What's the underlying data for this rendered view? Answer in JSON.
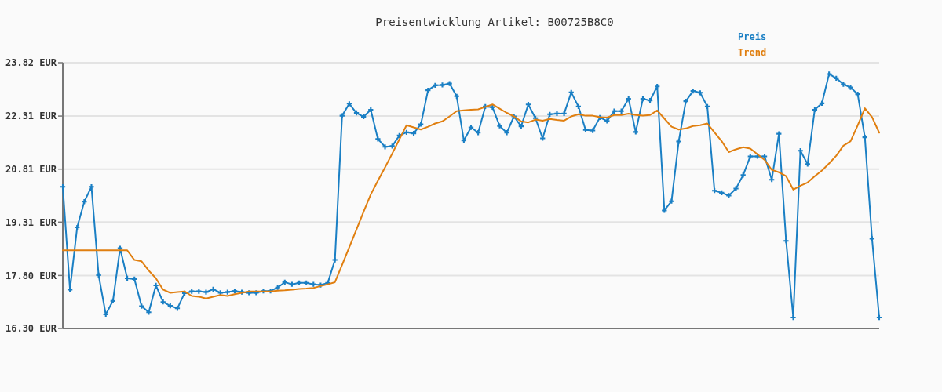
{
  "chart_data": {
    "type": "line",
    "title": "Preisentwicklung Artikel: B00725B8C0",
    "tick_labels": "y",
    "ylim": [
      16.3,
      23.82
    ],
    "categories": [
      null,
      null,
      null,
      null,
      null,
      null,
      null,
      null,
      null,
      null,
      null,
      null,
      null,
      null,
      null,
      null,
      null,
      null,
      null,
      null,
      null,
      null,
      null,
      null,
      null,
      null,
      null,
      null,
      null,
      null,
      null,
      null,
      null,
      null,
      null,
      null,
      null,
      null,
      null,
      null,
      null,
      null,
      null,
      null,
      null,
      null,
      null,
      null,
      null,
      null,
      null,
      null,
      null,
      null,
      null,
      null,
      null,
      null,
      null,
      null,
      null,
      null,
      null,
      null,
      null,
      null,
      null,
      null,
      null,
      null,
      null,
      null,
      null,
      null,
      null,
      null,
      null,
      null,
      null,
      null,
      null,
      null,
      null,
      null,
      null,
      null,
      null,
      null,
      null,
      null,
      null,
      null,
      null,
      null,
      null,
      null,
      null,
      null,
      null,
      null,
      null,
      null,
      null,
      null,
      null,
      null,
      null,
      null,
      null,
      null,
      null,
      null,
      null,
      null,
      null
    ],
    "yticks": [
      {
        "value": 16.3,
        "label": "16.30 EUR"
      },
      {
        "value": 17.8,
        "label": "17.80 EUR"
      },
      {
        "value": 19.31,
        "label": "19.31 EUR"
      },
      {
        "value": 20.81,
        "label": "20.81 EUR"
      },
      {
        "value": 22.31,
        "label": "22.31 EUR"
      },
      {
        "value": 23.82,
        "label": "23.82 EUR"
      }
    ],
    "grid": "y",
    "line_style": "solid",
    "series": [
      {
        "name": "Preis",
        "color": "#1a7fc4",
        "marker": "cross",
        "values": [
          20.31,
          17.4,
          19.16,
          19.89,
          20.31,
          17.81,
          16.7,
          17.08,
          18.57,
          17.72,
          17.7,
          16.93,
          16.76,
          17.52,
          17.05,
          16.94,
          16.87,
          17.3,
          17.35,
          17.35,
          17.33,
          17.41,
          17.31,
          17.33,
          17.36,
          17.33,
          17.31,
          17.31,
          17.36,
          17.36,
          17.46,
          17.61,
          17.55,
          17.59,
          17.59,
          17.55,
          17.53,
          17.59,
          18.24,
          22.32,
          22.66,
          22.4,
          22.29,
          22.49,
          21.66,
          21.44,
          21.46,
          21.76,
          21.85,
          21.82,
          22.08,
          23.04,
          23.18,
          23.19,
          23.23,
          22.87,
          21.62,
          21.99,
          21.84,
          22.58,
          22.56,
          22.03,
          21.84,
          22.3,
          22.02,
          22.64,
          22.25,
          21.68,
          22.36,
          22.38,
          22.38,
          22.98,
          22.58,
          21.92,
          21.9,
          22.27,
          22.17,
          22.45,
          22.45,
          22.8,
          21.86,
          22.8,
          22.75,
          23.15,
          19.64,
          19.9,
          21.59,
          22.73,
          23.02,
          22.97,
          22.58,
          20.2,
          20.14,
          20.06,
          20.26,
          20.64,
          21.17,
          21.17,
          21.17,
          20.51,
          21.81,
          18.78,
          16.61,
          21.33,
          20.95,
          22.49,
          22.67,
          23.5,
          23.38,
          23.21,
          23.12,
          22.93,
          21.71,
          18.84,
          16.61
        ]
      },
      {
        "name": "Trend",
        "color": "#e07f10",
        "marker": "none",
        "values": [
          18.51,
          18.51,
          18.51,
          18.51,
          18.51,
          18.51,
          18.51,
          18.51,
          18.51,
          18.51,
          18.24,
          18.2,
          17.94,
          17.72,
          17.4,
          17.31,
          17.33,
          17.35,
          17.22,
          17.2,
          17.15,
          17.2,
          17.25,
          17.22,
          17.27,
          17.31,
          17.35,
          17.35,
          17.35,
          17.35,
          17.37,
          17.38,
          17.4,
          17.42,
          17.43,
          17.45,
          17.5,
          17.55,
          17.61,
          18.1,
          18.6,
          19.1,
          19.6,
          20.09,
          20.48,
          20.86,
          21.25,
          21.65,
          22.05,
          21.99,
          21.93,
          22.01,
          22.1,
          22.16,
          22.3,
          22.45,
          22.47,
          22.49,
          22.5,
          22.57,
          22.64,
          22.52,
          22.4,
          22.3,
          22.16,
          22.13,
          22.21,
          22.18,
          22.23,
          22.2,
          22.18,
          22.3,
          22.36,
          22.32,
          22.32,
          22.28,
          22.27,
          22.34,
          22.34,
          22.38,
          22.34,
          22.32,
          22.34,
          22.47,
          22.24,
          22.01,
          21.93,
          21.96,
          22.03,
          22.05,
          22.1,
          21.85,
          21.6,
          21.29,
          21.37,
          21.43,
          21.39,
          21.23,
          21.07,
          20.79,
          20.72,
          20.61,
          20.23,
          20.34,
          20.43,
          20.61,
          20.77,
          20.97,
          21.19,
          21.47,
          21.6,
          22.05,
          22.53,
          22.28,
          21.84
        ]
      }
    ]
  }
}
